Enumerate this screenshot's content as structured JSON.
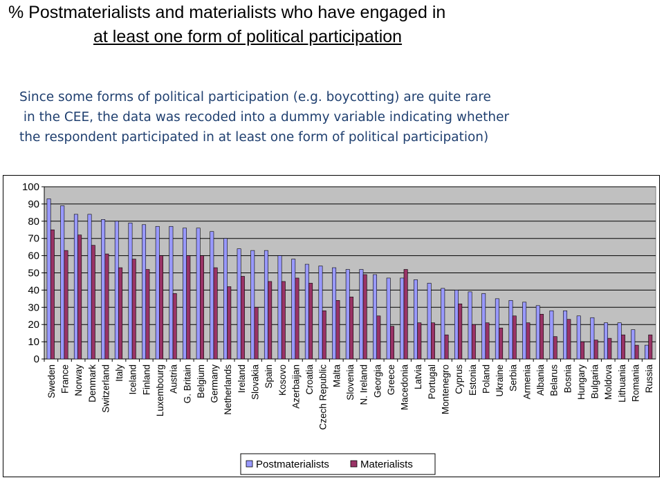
{
  "header": {
    "title_line1": "% Postmaterialists and materialists who have engaged in",
    "title_line2": "at least one form of political participation"
  },
  "note": {
    "line1": "Since some forms of political participation (e.g. boycotting) are quite rare",
    "line2": " in the CEE, the data was recoded into a dummy variable indicating whether",
    "line3": "the respondent participated in at least one form of political participation)"
  },
  "colors": {
    "postmaterialists": "#9999ff",
    "materialists": "#993366",
    "plot_background": "#c0c0c0"
  },
  "chart_data": {
    "type": "bar",
    "ylim": [
      0,
      100
    ],
    "yticks": [
      0,
      10,
      20,
      30,
      40,
      50,
      60,
      70,
      80,
      90,
      100
    ],
    "grid": true,
    "legend_position": "bottom",
    "categories": [
      "Sweden",
      "France",
      "Norway",
      "Denmark",
      "Switzerland",
      "Italy",
      "Iceland",
      "Finland",
      "Luxembourg",
      "Austria",
      "G. Britain",
      "Belgium",
      "Germany",
      "Netherlands",
      "Ireland",
      "Slovakia",
      "Spain",
      "Kosovo",
      "Azerbaijan",
      "Croatia",
      "Czech Republic",
      "Malta",
      "Slovenia",
      "N. Ireland",
      "Georgia",
      "Greece",
      "Macedonia",
      "Latvia",
      "Portugal",
      "Montenegro",
      "Cyprus",
      "Estonia",
      "Poland",
      "Ukraine",
      "Serbia",
      "Armenia",
      "Albania",
      "Belarus",
      "Bosnia",
      "Hungary",
      "Bulgaria",
      "Moldova",
      "Lithuania",
      "Romania",
      "Russia"
    ],
    "series": [
      {
        "name": "Postmaterialists",
        "values": [
          93,
          89,
          84,
          84,
          81,
          80,
          79,
          78,
          77,
          77,
          76,
          76,
          74,
          70,
          64,
          63,
          63,
          60,
          58,
          55,
          54,
          53,
          52,
          52,
          49,
          47,
          47,
          46,
          44,
          41,
          40,
          39,
          38,
          35,
          34,
          33,
          31,
          28,
          28,
          25,
          24,
          21,
          21,
          17,
          8
        ]
      },
      {
        "name": "Materialists",
        "values": [
          75,
          63,
          72,
          66,
          61,
          53,
          58,
          52,
          60,
          38,
          60,
          60,
          53,
          42,
          48,
          30,
          45,
          45,
          47,
          44,
          28,
          34,
          36,
          49,
          25,
          19,
          52,
          21,
          21,
          14,
          32,
          20,
          21,
          18,
          25,
          21,
          26,
          13,
          23,
          10,
          11,
          12,
          14,
          8,
          14
        ]
      }
    ]
  }
}
